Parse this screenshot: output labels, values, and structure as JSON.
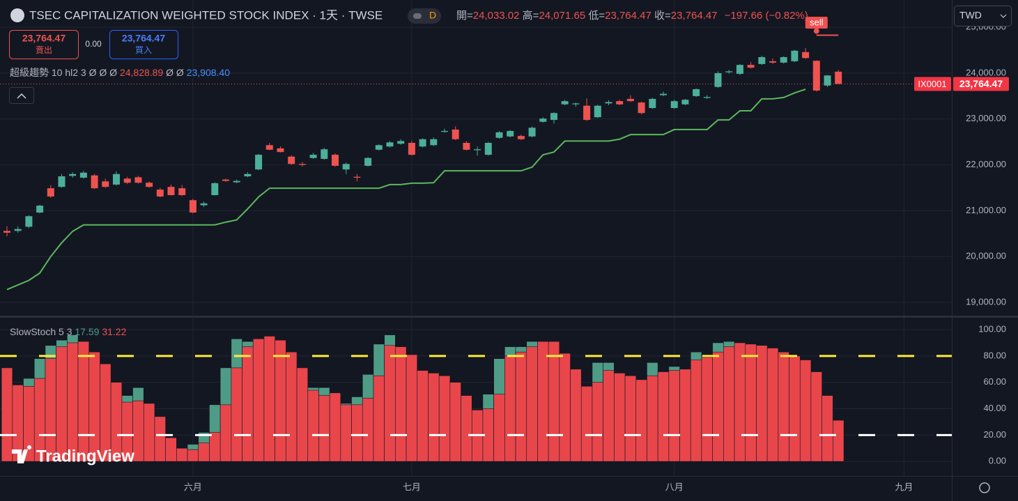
{
  "ui": {
    "title": "TSEC CAPITALIZATION WEIGHTED STOCK INDEX · 1天 · TWSE",
    "interval": "D",
    "ohlc": [
      {
        "label": "開=",
        "value": "24,033.02"
      },
      {
        "label": "高=",
        "value": "24,071.65"
      },
      {
        "label": "低=",
        "value": "23,764.47"
      },
      {
        "label": "收=",
        "value": "23,764.47"
      }
    ],
    "change": "−197.66 (−0.82%)",
    "sell_price": "23,764.47",
    "sell_label": "賣出",
    "spread": "0.00",
    "buy_price": "23,764.47",
    "buy_label": "買入",
    "indicator_readout": [
      "Ø Ø Ø",
      "24,828.89",
      "Ø Ø",
      "23,908.40"
    ],
    "currency": "TWD",
    "symbol_tag": "IX0001",
    "last_price": "23,764.47",
    "signal": "sell",
    "logo": "TradingView"
  },
  "chart_data": [
    {
      "type": "candlestick",
      "up_color": "#4caf9a",
      "down_color": "#ef5350",
      "grid": true,
      "categories": [
        null,
        null,
        null,
        null,
        null,
        null,
        null,
        null,
        null,
        null,
        null,
        null,
        null,
        null,
        null,
        null,
        null,
        "六月",
        null,
        null,
        null,
        null,
        null,
        null,
        null,
        null,
        null,
        null,
        null,
        null,
        null,
        null,
        null,
        null,
        null,
        null,
        null,
        "七月",
        null,
        null,
        null,
        null,
        null,
        null,
        null,
        null,
        null,
        null,
        null,
        null,
        null,
        null,
        null,
        null,
        null,
        null,
        null,
        null,
        null,
        null,
        null,
        "八月",
        null,
        null,
        null,
        null,
        null,
        null,
        null,
        null,
        null,
        null,
        null,
        null,
        null,
        null,
        null,
        null,
        null,
        null,
        null,
        null,
        "九月"
      ],
      "open": [
        20560,
        20560,
        20650,
        20960,
        21490,
        21520,
        21760,
        21720,
        21770,
        21640,
        21570,
        21700,
        21730,
        21610,
        21460,
        21520,
        21490,
        21230,
        21120,
        21340,
        21680,
        21620,
        21750,
        21900,
        22430,
        22360,
        22180,
        22020,
        22150,
        22130,
        22220,
        21900,
        21740,
        21980,
        22330,
        22400,
        22460,
        22480,
        22400,
        22430,
        22720,
        22770,
        22480,
        22320,
        22220,
        22590,
        22620,
        22630,
        22620,
        22940,
        22980,
        23320,
        23320,
        23290,
        23040,
        23340,
        23390,
        23440,
        23360,
        23240,
        23520,
        23240,
        23320,
        23500,
        23460,
        23700,
        24020,
        23985,
        24180,
        24200,
        24260,
        24230,
        24260,
        24460,
        24270,
        23730,
        24033.02,
        null,
        null,
        null,
        null,
        null,
        null
      ],
      "high": [
        20660,
        20660,
        20900,
        21130,
        21560,
        21800,
        21840,
        21870,
        21800,
        21700,
        21860,
        21740,
        21760,
        21640,
        21500,
        21570,
        21560,
        21260,
        21200,
        21620,
        21700,
        21680,
        21840,
        22240,
        22480,
        22400,
        22210,
        22060,
        22260,
        22370,
        22250,
        22050,
        21800,
        22170,
        22450,
        22520,
        22560,
        22520,
        22580,
        22600,
        22790,
        22840,
        22520,
        22400,
        22500,
        22740,
        22760,
        22660,
        22840,
        23040,
        23150,
        23420,
        23360,
        23450,
        23310,
        23410,
        23420,
        23520,
        23380,
        23460,
        23600,
        23420,
        23440,
        23670,
        23520,
        24040,
        24070,
        24200,
        24240,
        24380,
        24320,
        24370,
        24510,
        24550,
        24280,
        23960,
        24071.65,
        null,
        null,
        null,
        null,
        null,
        null
      ],
      "low": [
        20440,
        20520,
        20620,
        20940,
        21280,
        21500,
        21720,
        21700,
        21470,
        21500,
        21550,
        21580,
        21590,
        21500,
        21290,
        21330,
        21320,
        20940,
        21080,
        21330,
        21630,
        21600,
        21730,
        21880,
        22320,
        22270,
        22000,
        21960,
        22130,
        22110,
        21960,
        21800,
        21640,
        21960,
        22310,
        22380,
        22440,
        22200,
        22380,
        22410,
        22700,
        22540,
        22310,
        22200,
        22200,
        22570,
        22600,
        22540,
        22600,
        22920,
        22900,
        23300,
        23270,
        22960,
        23020,
        23300,
        23300,
        23370,
        23100,
        23220,
        23500,
        23220,
        23300,
        23480,
        23440,
        23680,
        23990,
        23960,
        24100,
        24180,
        24200,
        24210,
        24240,
        24310,
        23600,
        23700,
        23764.47,
        null,
        null,
        null,
        null,
        null,
        null
      ],
      "close": [
        20520,
        20600,
        20880,
        21110,
        21310,
        21750,
        21800,
        21830,
        21490,
        21520,
        21800,
        21610,
        21610,
        21520,
        21310,
        21340,
        21340,
        20960,
        21160,
        21600,
        21650,
        21650,
        21800,
        22220,
        22330,
        22280,
        22020,
        22000,
        22220,
        22340,
        21980,
        22020,
        21720,
        22150,
        22430,
        22490,
        22520,
        22220,
        22560,
        22560,
        22740,
        22560,
        22330,
        22340,
        22480,
        22710,
        22740,
        22560,
        22810,
        23010,
        23130,
        23390,
        23340,
        22980,
        23290,
        23370,
        23320,
        23390,
        23130,
        23440,
        23550,
        23390,
        23420,
        23650,
        23480,
        24000,
        24040,
        24180,
        24120,
        24350,
        24230,
        24350,
        24490,
        24330,
        23620,
        23950,
        23764.47,
        null,
        null,
        null,
        null,
        null,
        null
      ],
      "indicator": {
        "name": "超級趨勢 10 hl2 3",
        "up_color": "#5cb85c",
        "down_color": "#ef5350",
        "up": [
          19280,
          19380,
          19480,
          19640,
          20000,
          20300,
          20550,
          20690,
          20690,
          20690,
          20690,
          20690,
          20690,
          20690,
          20690,
          20690,
          20690,
          20690,
          20690,
          20690,
          20750,
          20800,
          21040,
          21300,
          21490,
          21490,
          21490,
          21490,
          21490,
          21490,
          21490,
          21490,
          21490,
          21490,
          21490,
          21570,
          21570,
          21600,
          21600,
          21610,
          21870,
          21870,
          21870,
          21870,
          21870,
          21870,
          21870,
          21870,
          21950,
          22220,
          22280,
          22520,
          22520,
          22520,
          22520,
          22520,
          22560,
          22660,
          22660,
          22660,
          22660,
          22770,
          22770,
          22770,
          22770,
          22980,
          22980,
          23180,
          23180,
          23440,
          23440,
          23470,
          23570,
          23650,
          null,
          null,
          null,
          null,
          null,
          null,
          null,
          null,
          null
        ],
        "down": [
          null,
          null,
          null,
          null,
          null,
          null,
          null,
          null,
          null,
          null,
          null,
          null,
          null,
          null,
          null,
          null,
          null,
          null,
          null,
          null,
          null,
          null,
          null,
          null,
          null,
          null,
          null,
          null,
          null,
          null,
          null,
          null,
          null,
          null,
          null,
          null,
          null,
          null,
          null,
          null,
          null,
          null,
          null,
          null,
          null,
          null,
          null,
          null,
          null,
          null,
          null,
          null,
          null,
          null,
          null,
          null,
          null,
          null,
          null,
          null,
          null,
          null,
          null,
          null,
          null,
          null,
          null,
          null,
          null,
          null,
          null,
          null,
          null,
          null,
          24828.89,
          24828.89,
          24828.89,
          null,
          null,
          null,
          null,
          null,
          null
        ]
      },
      "ylim": [
        18726,
        25596
      ],
      "yticks": [
        {
          "value": 19000,
          "label": "19,000.00"
        },
        {
          "value": 20000,
          "label": "20,000.00"
        },
        {
          "value": 21000,
          "label": "21,000.00"
        },
        {
          "value": 22000,
          "label": "22,000.00"
        },
        {
          "value": 23000,
          "label": "23,000.00"
        },
        {
          "value": 24000,
          "label": "24,000.00"
        },
        {
          "value": 25000,
          "label": "25,000.00"
        }
      ]
    },
    {
      "type": "bar",
      "title": "SlowStoch 5 3",
      "grid": true,
      "series": [
        {
          "color": "#4e9c86",
          "values": [
            60,
            50,
            63,
            78,
            88,
            92,
            96,
            91,
            80,
            60,
            55,
            50,
            56,
            38,
            20,
            10,
            8,
            13,
            22,
            43,
            71,
            93,
            91,
            93,
            94,
            88,
            75,
            62,
            56,
            56,
            50,
            44,
            49,
            66,
            89,
            96,
            87,
            75,
            65,
            67,
            62,
            52,
            43,
            38,
            51,
            78,
            87,
            87,
            91,
            91,
            90,
            75,
            60,
            50,
            75,
            75,
            62,
            60,
            55,
            75,
            66,
            72,
            68,
            83,
            80,
            90,
            91,
            88,
            86,
            84,
            80,
            70,
            60,
            45,
            30,
            20,
            17.59,
            null,
            null,
            null,
            null,
            null,
            null
          ]
        },
        {
          "color": "#e8464b",
          "values": [
            71,
            58,
            57,
            63,
            78,
            87,
            90,
            91,
            83,
            74,
            60,
            45,
            46,
            44,
            34,
            18,
            10,
            9,
            14,
            22,
            43,
            71,
            87,
            93,
            95,
            92,
            83,
            71,
            54,
            50,
            52,
            43,
            43,
            48,
            65,
            88,
            87,
            81,
            69,
            67,
            65,
            60,
            50,
            39,
            40,
            51,
            80,
            83,
            87,
            91,
            91,
            82,
            70,
            57,
            60,
            69,
            67,
            65,
            62,
            65,
            68,
            69,
            70,
            77,
            79,
            83,
            87,
            90,
            89,
            88,
            86,
            83,
            80,
            77,
            68,
            50,
            31.22,
            null,
            null,
            null,
            null,
            null,
            null
          ]
        }
      ],
      "hlines": [
        {
          "value": 80,
          "color": "#ffeb3b"
        },
        {
          "value": 20,
          "color": "#ffffff"
        }
      ],
      "ylim": [
        -11,
        109
      ],
      "yticks": [
        {
          "value": 0,
          "label": "0.00"
        },
        {
          "value": 20,
          "label": "20.00"
        },
        {
          "value": 40,
          "label": "40.00"
        },
        {
          "value": 60,
          "label": "60.00"
        },
        {
          "value": 80,
          "label": "80.00"
        },
        {
          "value": 100,
          "label": "100.00"
        }
      ]
    }
  ]
}
